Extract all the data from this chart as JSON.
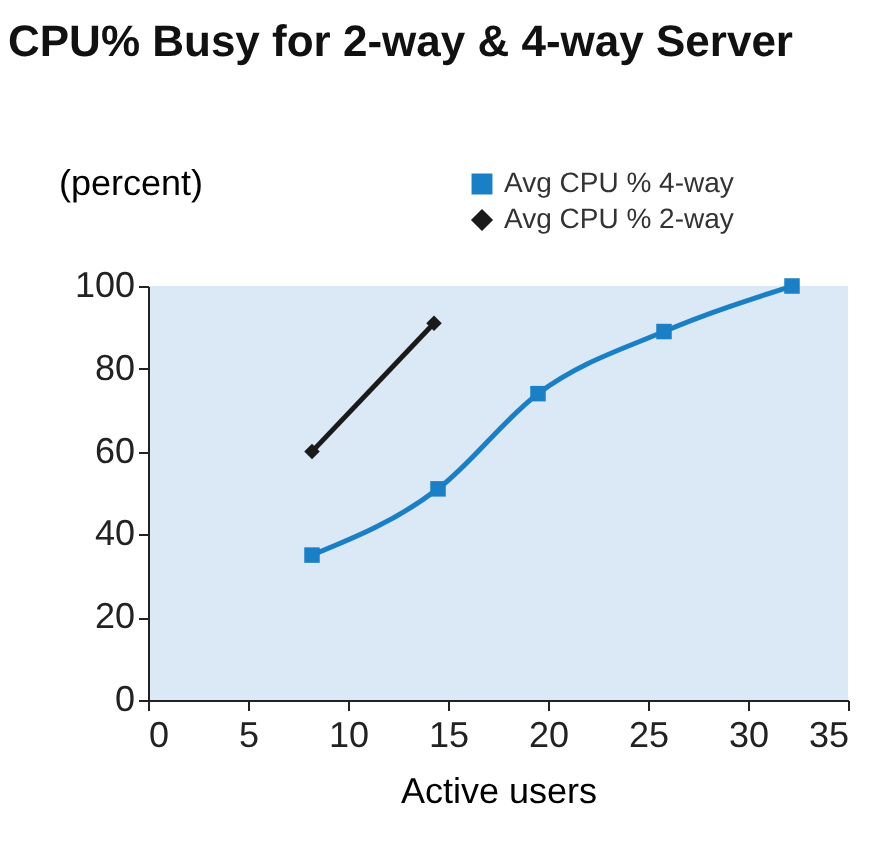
{
  "chart_data": {
    "type": "line",
    "title": "CPU% Busy for 2-way & 4-way Server",
    "xlabel": "Active users",
    "ylabel": "(percent)",
    "series": [
      {
        "name": "Avg CPU % 4-way",
        "color": "#1a7fc4",
        "marker": "square",
        "x": [
          8.2,
          14.5,
          19.5,
          25.8,
          32.2
        ],
        "values": [
          35,
          51,
          74,
          89,
          100
        ]
      },
      {
        "name": "Avg CPU % 2-way",
        "color": "#1a1a1a",
        "marker": "diamond",
        "x": [
          8.2,
          14.3
        ],
        "values": [
          60,
          91
        ]
      }
    ],
    "xlim": [
      0,
      35
    ],
    "xticks": [
      0,
      5,
      10,
      15,
      20,
      25,
      30,
      35
    ],
    "ylim": [
      0,
      100
    ],
    "yticks": [
      0,
      20,
      40,
      60,
      80,
      100
    ],
    "grid": false,
    "legend": "top right",
    "line_style": "solid"
  }
}
